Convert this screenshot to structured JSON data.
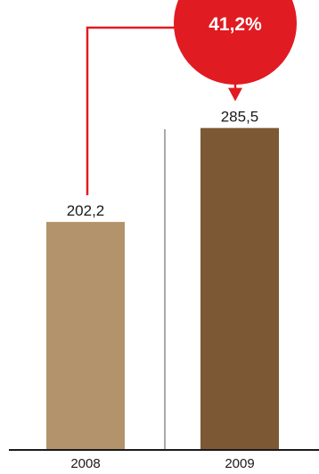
{
  "chart_data": {
    "type": "bar",
    "categories": [
      "2008",
      "2009"
    ],
    "values": [
      202.2,
      285.5
    ],
    "value_labels": [
      "202,2",
      "285,5"
    ],
    "ylim": [
      0,
      320
    ],
    "grid": false,
    "title": "",
    "xlabel": "",
    "ylabel": "",
    "annotation": {
      "label": "41,2%",
      "from_category": "2008",
      "to_category": "2009"
    },
    "colors": {
      "bars": [
        "#b3936b",
        "#7d5834"
      ],
      "annotation": "#e11b22",
      "axis": "#1a1a1a",
      "divider": "#555555"
    }
  }
}
